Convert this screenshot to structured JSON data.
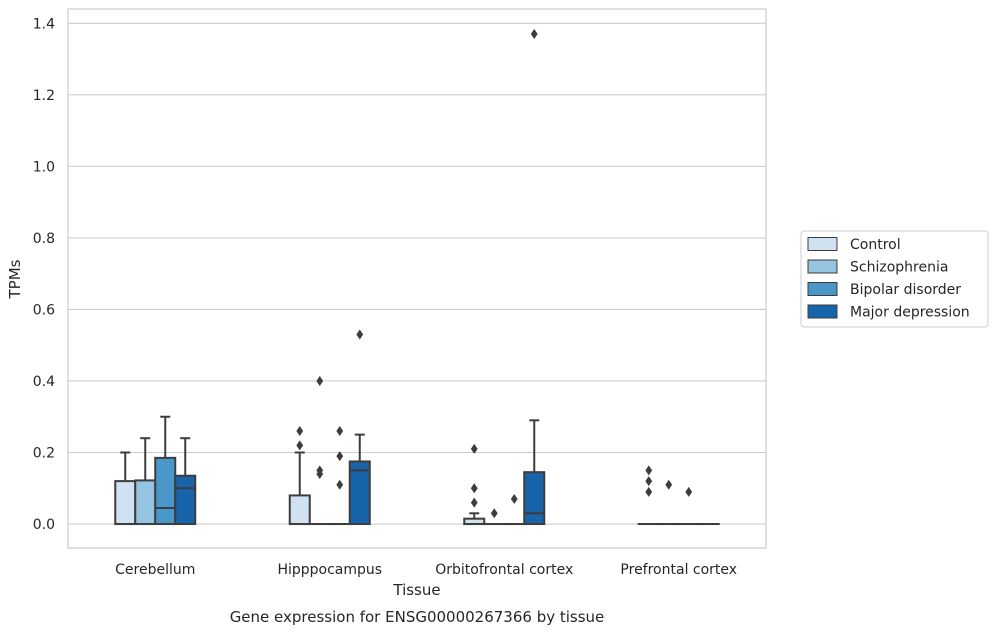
{
  "chart_data": {
    "type": "box",
    "xlabel": "Tissue",
    "ylabel": "TPMs",
    "caption": "Gene expression for ENSG00000267366 by tissue",
    "ylim": [
      -0.067,
      1.44
    ],
    "yticks": [
      0.0,
      0.2,
      0.4,
      0.6,
      0.8,
      1.0,
      1.2,
      1.4
    ],
    "ytick_labels": [
      "0.0",
      "0.2",
      "0.4",
      "0.6",
      "0.8",
      "1.0",
      "1.2",
      "1.4"
    ],
    "grid": true,
    "legend_position": "right",
    "categories": [
      "Cerebellum",
      "Hipppocampus",
      "Orbitofrontal cortex",
      "Prefrontal cortex"
    ],
    "series": [
      {
        "name": "Control",
        "color": "#d0e1f2",
        "boxes": [
          {
            "q1": 0.0,
            "median": 0.0,
            "q3": 0.12,
            "whisker_low": 0.0,
            "whisker_high": 0.2,
            "outliers": []
          },
          {
            "q1": 0.0,
            "median": 0.0,
            "q3": 0.08,
            "whisker_low": 0.0,
            "whisker_high": 0.2,
            "outliers": [
              0.22,
              0.26
            ]
          },
          {
            "q1": 0.0,
            "median": 0.0,
            "q3": 0.015,
            "whisker_low": 0.0,
            "whisker_high": 0.03,
            "outliers": [
              0.06,
              0.1,
              0.21
            ]
          },
          {
            "q1": 0.0,
            "median": 0.0,
            "q3": 0.0,
            "whisker_low": 0.0,
            "whisker_high": 0.0,
            "outliers": [
              0.09,
              0.12,
              0.15
            ]
          }
        ]
      },
      {
        "name": "Schizophrenia",
        "color": "#94c4df",
        "boxes": [
          {
            "q1": 0.0,
            "median": 0.0,
            "q3": 0.122,
            "whisker_low": 0.0,
            "whisker_high": 0.24,
            "outliers": []
          },
          {
            "q1": 0.0,
            "median": 0.0,
            "q3": 0.0,
            "whisker_low": 0.0,
            "whisker_high": 0.0,
            "outliers": [
              0.14,
              0.15,
              0.4
            ]
          },
          {
            "q1": 0.0,
            "median": 0.0,
            "q3": 0.0,
            "whisker_low": 0.0,
            "whisker_high": 0.0,
            "outliers": [
              0.03
            ]
          },
          {
            "q1": 0.0,
            "median": 0.0,
            "q3": 0.0,
            "whisker_low": 0.0,
            "whisker_high": 0.0,
            "outliers": [
              0.11
            ]
          }
        ]
      },
      {
        "name": "Bipolar disorder",
        "color": "#4a98c9",
        "boxes": [
          {
            "q1": 0.0,
            "median": 0.045,
            "q3": 0.185,
            "whisker_low": 0.0,
            "whisker_high": 0.3,
            "outliers": []
          },
          {
            "q1": 0.0,
            "median": 0.0,
            "q3": 0.0,
            "whisker_low": 0.0,
            "whisker_high": 0.0,
            "outliers": [
              0.11,
              0.19,
              0.26
            ]
          },
          {
            "q1": 0.0,
            "median": 0.0,
            "q3": 0.0,
            "whisker_low": 0.0,
            "whisker_high": 0.0,
            "outliers": [
              0.07
            ]
          },
          {
            "q1": 0.0,
            "median": 0.0,
            "q3": 0.0,
            "whisker_low": 0.0,
            "whisker_high": 0.0,
            "outliers": [
              0.09
            ]
          }
        ]
      },
      {
        "name": "Major depression",
        "color": "#1764ab",
        "boxes": [
          {
            "q1": 0.0,
            "median": 0.1,
            "q3": 0.135,
            "whisker_low": 0.0,
            "whisker_high": 0.24,
            "outliers": []
          },
          {
            "q1": 0.0,
            "median": 0.15,
            "q3": 0.175,
            "whisker_low": 0.0,
            "whisker_high": 0.25,
            "outliers": [
              0.53
            ]
          },
          {
            "q1": 0.0,
            "median": 0.03,
            "q3": 0.145,
            "whisker_low": 0.0,
            "whisker_high": 0.29,
            "outliers": [
              1.37
            ]
          },
          {
            "q1": 0.0,
            "median": 0.0,
            "q3": 0.0,
            "whisker_low": 0.0,
            "whisker_high": 0.0,
            "outliers": []
          }
        ]
      }
    ]
  }
}
